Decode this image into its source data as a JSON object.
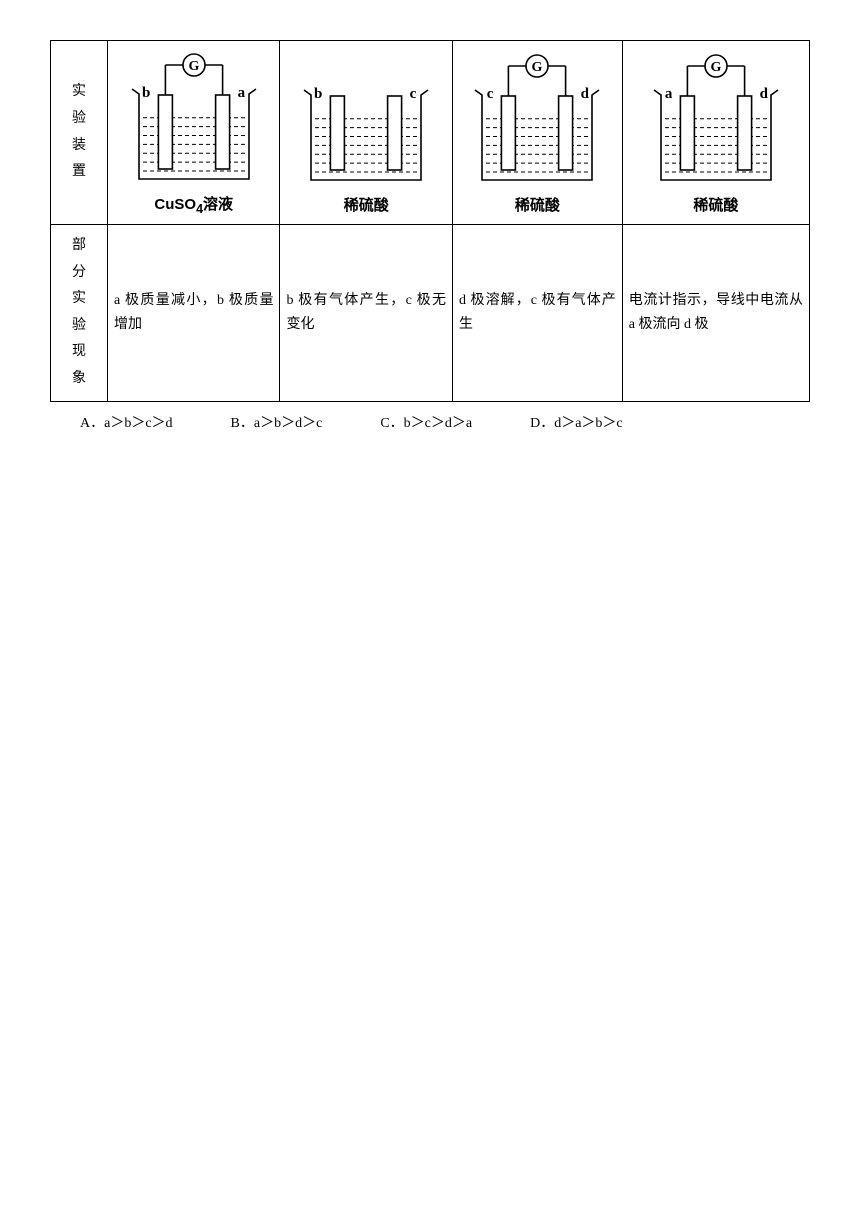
{
  "table": {
    "row1_header": "实验装置",
    "row2_header": "部分实验现象",
    "diagrams": [
      {
        "left_label": "b",
        "right_label": "a",
        "has_galvanometer": true,
        "solution": "CuSO4溶液",
        "solution_html": "CuSO<sub>4</sub>溶液"
      },
      {
        "left_label": "b",
        "right_label": "c",
        "has_galvanometer": false,
        "solution": "稀硫酸"
      },
      {
        "left_label": "c",
        "right_label": "d",
        "has_galvanometer": true,
        "solution": "稀硫酸"
      },
      {
        "left_label": "a",
        "right_label": "d",
        "has_galvanometer": true,
        "solution": "稀硫酸"
      }
    ],
    "observations": [
      "a 极质量减小，b 极质量增加",
      "b 极有气体产生，c 极无变化",
      "d 极溶解，c 极有气体产生",
      "电流计指示，导线中电流从 a 极流向 d 极"
    ]
  },
  "options": {
    "A": "A．a＞b＞c＞d",
    "B": "B．a＞b＞d＞c",
    "C": "C．b＞c＞d＞a",
    "D": "D．d＞a＞b＞c"
  },
  "style": {
    "stroke": "#000000",
    "stroke_width": 1.6,
    "beaker_width": 110,
    "beaker_height": 90,
    "electrode_width": 14,
    "liquid_lines": 7
  }
}
